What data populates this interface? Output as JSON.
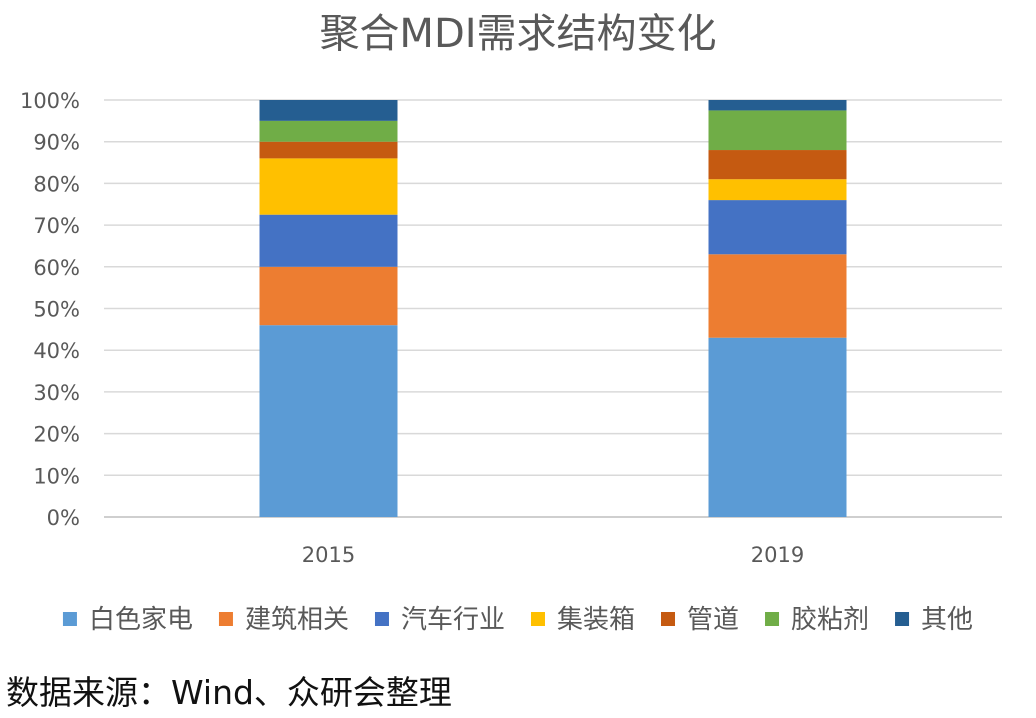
{
  "chart_data": {
    "type": "bar",
    "stacked": true,
    "title": "聚合MDI需求结构变化",
    "categories": [
      "2015",
      "2019"
    ],
    "series": [
      {
        "name": "白色家电",
        "color": "#5B9BD5",
        "values": [
          46,
          43
        ]
      },
      {
        "name": "建筑相关",
        "color": "#ED7D31",
        "values": [
          14,
          20
        ]
      },
      {
        "name": "汽车行业",
        "color": "#4472C4",
        "values": [
          12.5,
          13
        ]
      },
      {
        "name": "集装箱",
        "color": "#FFC000",
        "values": [
          13.5,
          5
        ]
      },
      {
        "name": "管道",
        "color": "#C55A11",
        "values": [
          4,
          7
        ]
      },
      {
        "name": "胶粘剂",
        "color": "#70AD47",
        "values": [
          5,
          9.5
        ]
      },
      {
        "name": "其他",
        "color": "#255E91",
        "values": [
          5,
          2.5
        ]
      }
    ],
    "ylim": [
      0,
      100
    ],
    "yticks": [
      "0%",
      "10%",
      "20%",
      "30%",
      "40%",
      "50%",
      "60%",
      "70%",
      "80%",
      "90%",
      "100%"
    ],
    "grid": true,
    "legend": "bottom"
  },
  "source": "数据来源：Wind、众研会整理"
}
